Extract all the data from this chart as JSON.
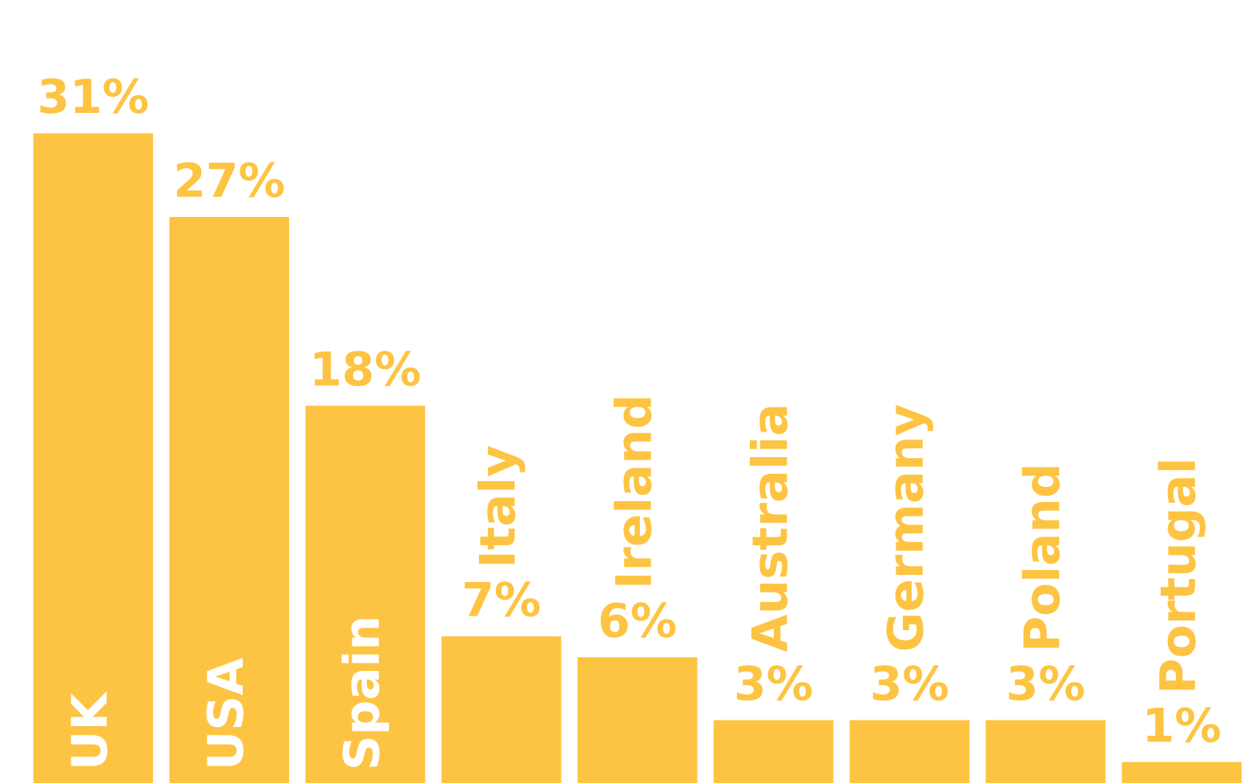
{
  "chart_data": {
    "type": "bar",
    "categories": [
      "UK",
      "USA",
      "Spain",
      "Italy",
      "Ireland",
      "Australia",
      "Germany",
      "Poland",
      "Portugal"
    ],
    "values": [
      31,
      27,
      18,
      7,
      6,
      3,
      3,
      3,
      1
    ],
    "value_labels": [
      "31%",
      "27%",
      "18%",
      "7%",
      "6%",
      "3%",
      "3%",
      "3%",
      "1%"
    ],
    "color": "#fdc443"
  }
}
